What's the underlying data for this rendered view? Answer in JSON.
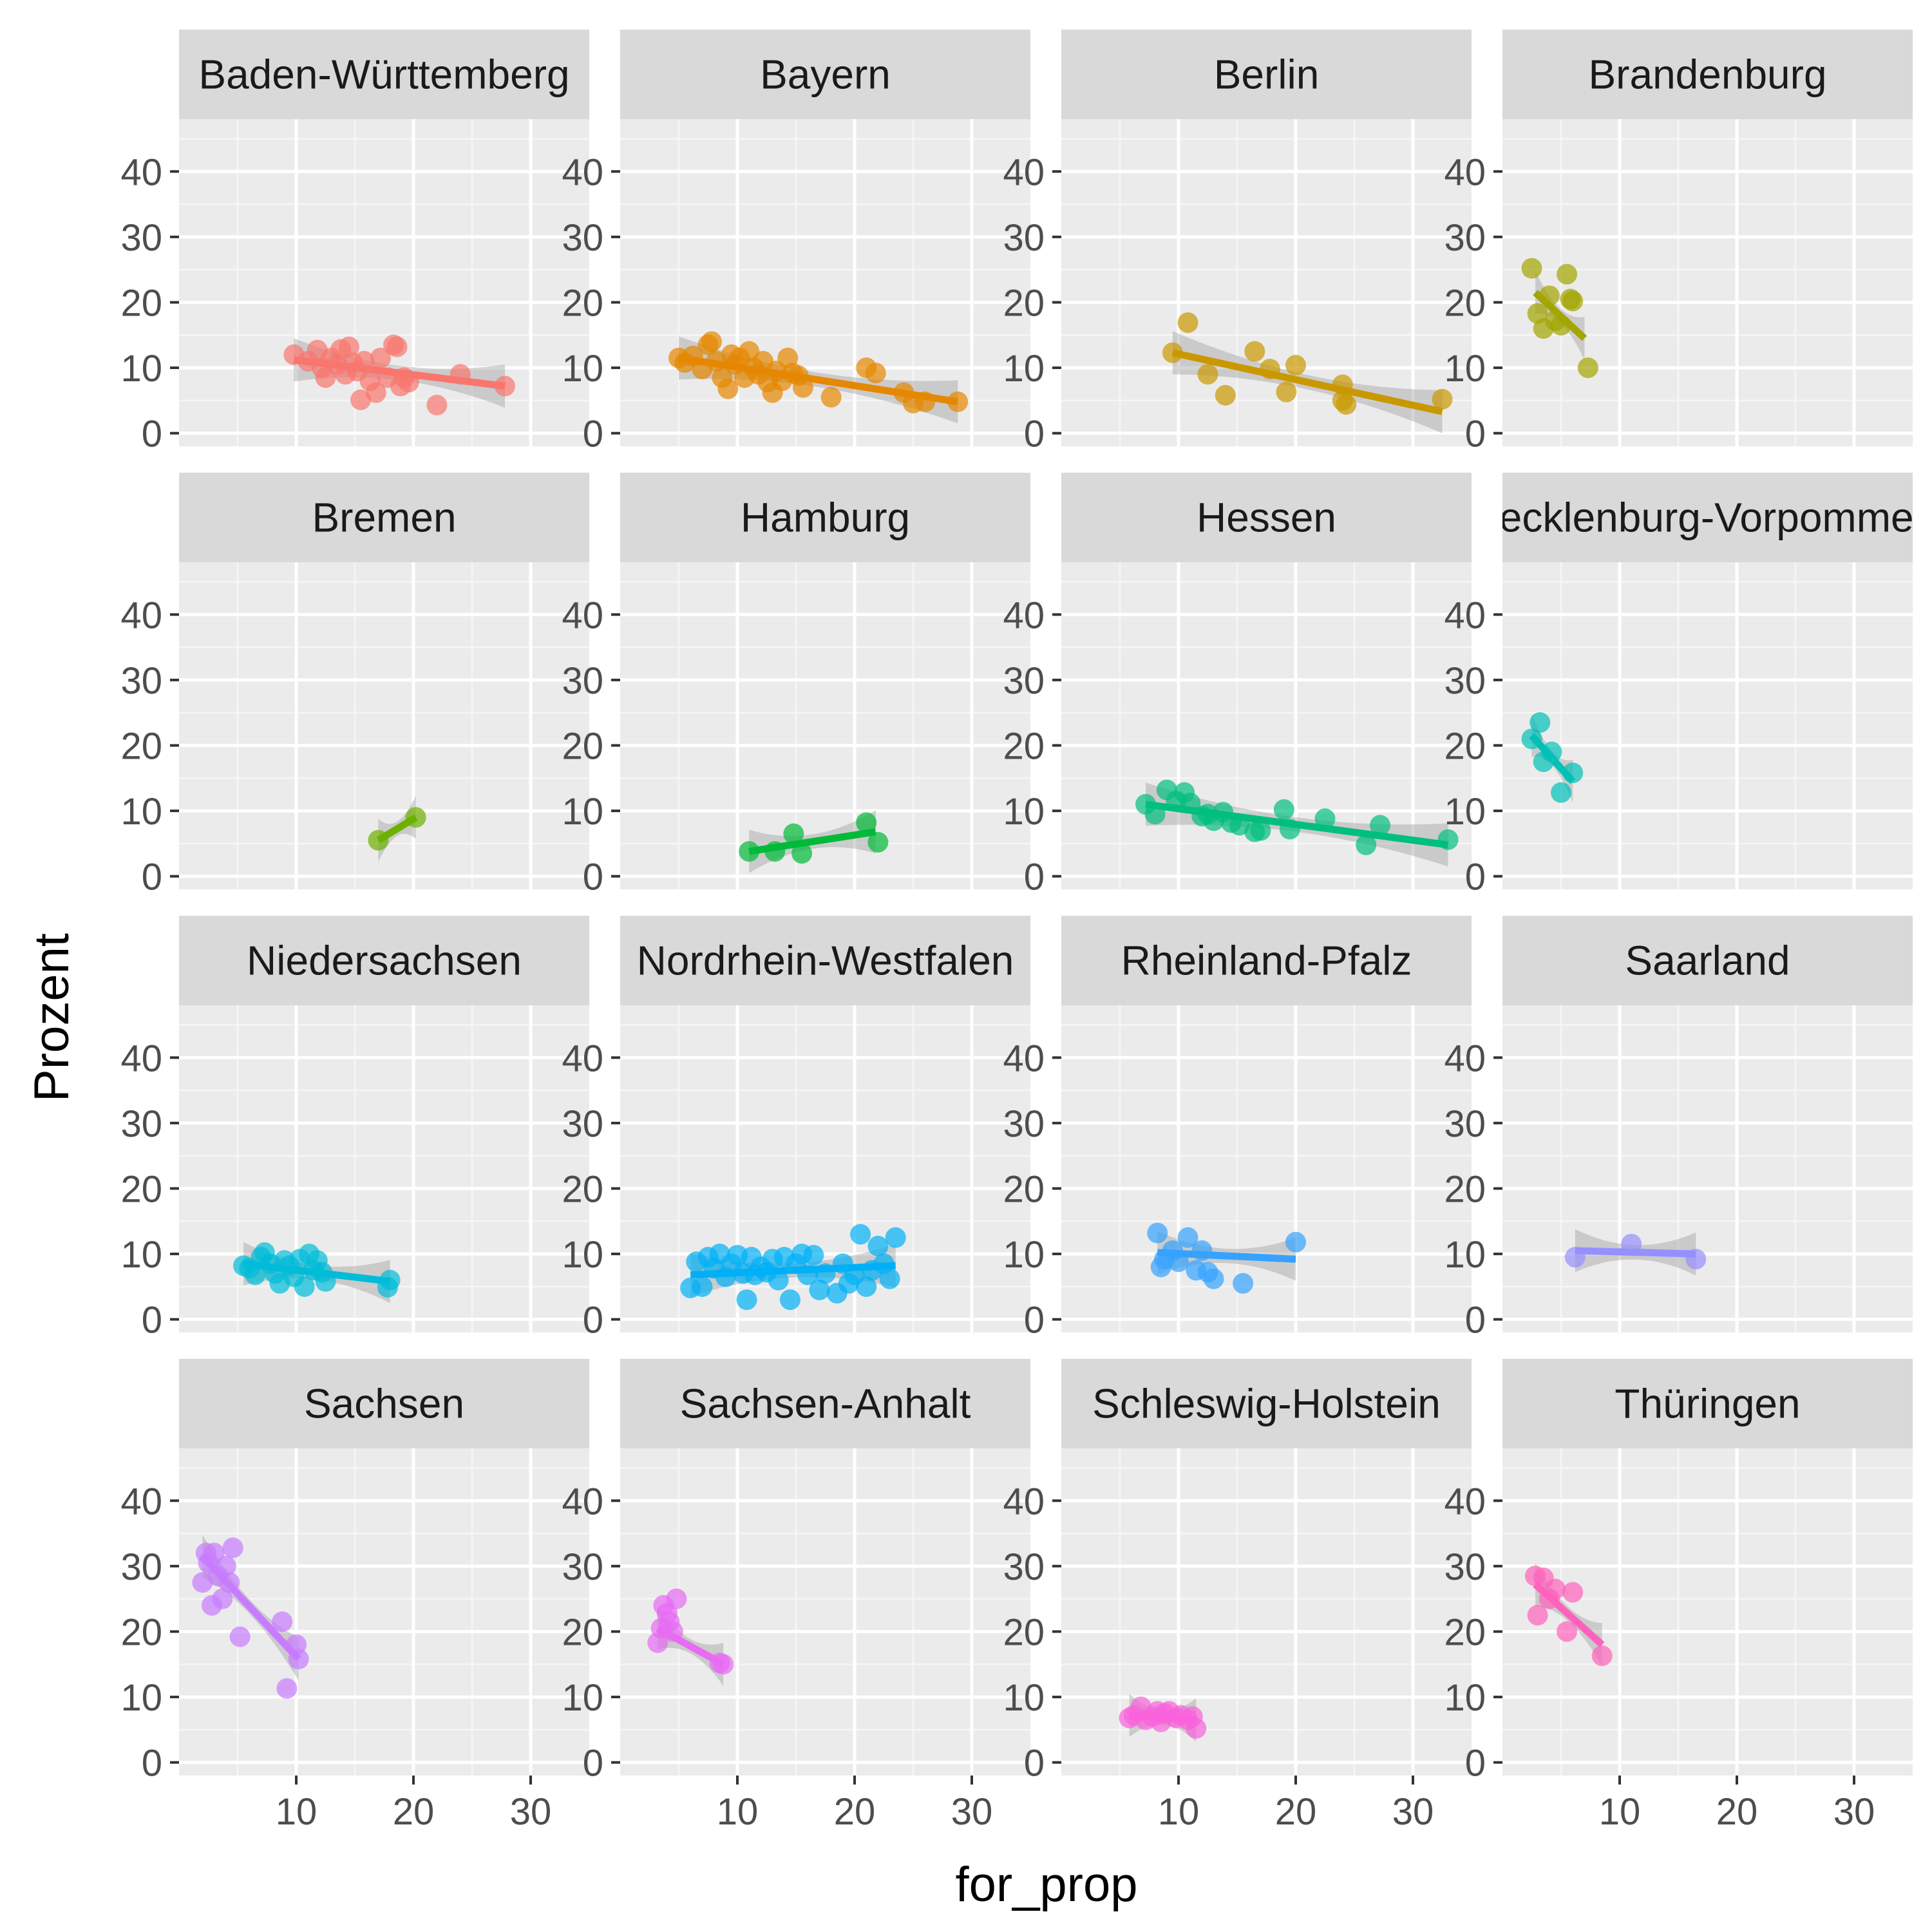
{
  "chart_data": {
    "type": "scatter",
    "facet_layout": "wrap 4x4",
    "xlabel": "for_prop",
    "ylabel": "Prozent",
    "xlim": [
      0,
      35
    ],
    "ylim": [
      -2,
      48
    ],
    "xticks": [
      10,
      20,
      30
    ],
    "yticks": [
      0,
      10,
      20,
      30,
      40
    ],
    "grid": true,
    "legend": "none",
    "smoothing": "linear fit with grey confidence band",
    "panels": [
      {
        "name": "Baden-Württemberg",
        "color": "#F8766D",
        "points": [
          [
            9.8,
            12
          ],
          [
            11,
            11
          ],
          [
            11.8,
            12.7
          ],
          [
            12.2,
            10
          ],
          [
            12.5,
            8.5
          ],
          [
            13,
            11.5
          ],
          [
            13.5,
            10.5
          ],
          [
            13.8,
            12.8
          ],
          [
            14.2,
            9
          ],
          [
            14.5,
            13.2
          ],
          [
            14.8,
            10.8
          ],
          [
            15.2,
            9.5
          ],
          [
            15.5,
            5.1
          ],
          [
            15.8,
            11
          ],
          [
            16.3,
            8
          ],
          [
            16.8,
            6.2
          ],
          [
            17.2,
            11.5
          ],
          [
            17.8,
            8.5
          ],
          [
            18.3,
            13.5
          ],
          [
            18.6,
            13.2
          ],
          [
            18.9,
            7.2
          ],
          [
            19.2,
            8.5
          ],
          [
            19.6,
            7.8
          ],
          [
            22,
            4.3
          ],
          [
            24,
            9
          ],
          [
            27.8,
            7.2
          ]
        ],
        "fit": {
          "x": [
            9.8,
            27.8
          ],
          "y": [
            11.2,
            7.2
          ]
        }
      },
      {
        "name": "Bayern",
        "color": "#E58700",
        "points": [
          [
            5,
            11.5
          ],
          [
            5.5,
            10.8
          ],
          [
            6.2,
            11.8
          ],
          [
            7,
            9.8
          ],
          [
            7.5,
            13.5
          ],
          [
            7.8,
            14
          ],
          [
            8.2,
            11
          ],
          [
            8.7,
            8.5
          ],
          [
            9.2,
            6.8
          ],
          [
            9.5,
            12
          ],
          [
            9.8,
            10.5
          ],
          [
            10.2,
            11.5
          ],
          [
            10.6,
            8.5
          ],
          [
            11,
            12.5
          ],
          [
            11.4,
            10
          ],
          [
            11.8,
            9
          ],
          [
            12.2,
            11
          ],
          [
            12.6,
            7.8
          ],
          [
            13,
            6.2
          ],
          [
            13.3,
            9.5
          ],
          [
            13.8,
            8
          ],
          [
            14.3,
            11.5
          ],
          [
            14.7,
            9.2
          ],
          [
            15.2,
            8.8
          ],
          [
            15.6,
            7
          ],
          [
            18,
            5.5
          ],
          [
            21,
            10
          ],
          [
            21.8,
            9.2
          ],
          [
            24.2,
            6.2
          ],
          [
            25,
            4.6
          ],
          [
            26,
            4.8
          ],
          [
            28.8,
            4.8
          ]
        ],
        "fit": {
          "x": [
            5,
            28.8
          ],
          "y": [
            11.5,
            4.8
          ]
        }
      },
      {
        "name": "Berlin",
        "color": "#C99800",
        "points": [
          [
            9.5,
            12.3
          ],
          [
            10.8,
            16.9
          ],
          [
            12.5,
            9
          ],
          [
            14,
            5.8
          ],
          [
            16.5,
            12.5
          ],
          [
            17.8,
            9.8
          ],
          [
            19.2,
            6.3
          ],
          [
            20,
            10.4
          ],
          [
            24,
            7.4
          ],
          [
            24,
            5
          ],
          [
            24.3,
            4.4
          ],
          [
            32.5,
            5.2
          ]
        ],
        "fit": {
          "x": [
            9.5,
            32.5
          ],
          "y": [
            12.3,
            3.3
          ]
        }
      },
      {
        "name": "Brandenburg",
        "color": "#A3A500",
        "points": [
          [
            2.5,
            25.2
          ],
          [
            3,
            18.3
          ],
          [
            3.5,
            16
          ],
          [
            4,
            21
          ],
          [
            4.5,
            17.2
          ],
          [
            5,
            16.5
          ],
          [
            5.5,
            24.3
          ],
          [
            5.8,
            20.5
          ],
          [
            6,
            20.2
          ],
          [
            7.3,
            10
          ]
        ],
        "fit": {
          "x": [
            2.8,
            7
          ],
          "y": [
            21.5,
            14.5
          ]
        }
      },
      {
        "name": "Bremen",
        "color": "#6BB100",
        "points": [
          [
            17,
            5.5
          ],
          [
            20.2,
            9
          ]
        ],
        "fit": {
          "x": [
            17,
            20.2
          ],
          "y": [
            5.5,
            9
          ]
        }
      },
      {
        "name": "Hamburg",
        "color": "#00BA38",
        "points": [
          [
            11,
            3.8
          ],
          [
            13.2,
            3.8
          ],
          [
            14.8,
            6.5
          ],
          [
            15.5,
            3.5
          ],
          [
            21,
            8.2
          ],
          [
            22,
            5.2
          ]
        ],
        "fit": {
          "x": [
            11,
            21.8
          ],
          "y": [
            3.8,
            6.8
          ]
        }
      },
      {
        "name": "Hessen",
        "color": "#00BF7D",
        "points": [
          [
            7.2,
            11
          ],
          [
            8,
            9.5
          ],
          [
            9,
            13.2
          ],
          [
            9.8,
            11.5
          ],
          [
            10.5,
            12.8
          ],
          [
            11,
            11.2
          ],
          [
            12,
            9.2
          ],
          [
            12.5,
            9.5
          ],
          [
            13,
            8.5
          ],
          [
            13.8,
            9.8
          ],
          [
            14.5,
            8.2
          ],
          [
            15.2,
            7.8
          ],
          [
            16.5,
            6.8
          ],
          [
            17,
            7
          ],
          [
            19,
            10.2
          ],
          [
            19.5,
            7.2
          ],
          [
            22.5,
            8.8
          ],
          [
            26,
            4.8
          ],
          [
            27.2,
            7.8
          ],
          [
            33,
            5.6
          ]
        ],
        "fit": {
          "x": [
            7.2,
            33
          ],
          "y": [
            11,
            4.8
          ]
        }
      },
      {
        "name": "Mecklenburg-Vorpommern",
        "color": "#00C0B8",
        "points": [
          [
            2.5,
            21
          ],
          [
            3.2,
            23.5
          ],
          [
            3.5,
            17.5
          ],
          [
            4.2,
            19
          ],
          [
            5,
            12.8
          ],
          [
            6,
            15.8
          ]
        ],
        "fit": {
          "x": [
            2.5,
            6
          ],
          "y": [
            21.5,
            14.5
          ]
        }
      },
      {
        "name": "Niedersachsen",
        "color": "#00BCD8",
        "points": [
          [
            5.5,
            8.2
          ],
          [
            6,
            7.8
          ],
          [
            6.5,
            6.8
          ],
          [
            7,
            9.5
          ],
          [
            7.3,
            10.2
          ],
          [
            7.8,
            8.5
          ],
          [
            8.2,
            7
          ],
          [
            8.6,
            5.5
          ],
          [
            9,
            9
          ],
          [
            9.4,
            8.2
          ],
          [
            9.8,
            6.5
          ],
          [
            10.3,
            9.2
          ],
          [
            10.7,
            5
          ],
          [
            11.1,
            10
          ],
          [
            11.5,
            7.5
          ],
          [
            11.8,
            9
          ],
          [
            12.2,
            7.2
          ],
          [
            12.5,
            5.8
          ],
          [
            17.8,
            4.9
          ],
          [
            18,
            6
          ]
        ],
        "fit": {
          "x": [
            5.5,
            18
          ],
          "y": [
            8.5,
            5.8
          ]
        }
      },
      {
        "name": "Nordrhein-Westfalen",
        "color": "#00B0F6",
        "points": [
          [
            6,
            4.8
          ],
          [
            6.5,
            8.8
          ],
          [
            7,
            5
          ],
          [
            7.5,
            9.5
          ],
          [
            8,
            7.8
          ],
          [
            8.5,
            10
          ],
          [
            9,
            6.5
          ],
          [
            9.5,
            8.5
          ],
          [
            10,
            9.8
          ],
          [
            10.5,
            7
          ],
          [
            10.8,
            3
          ],
          [
            11.2,
            9.5
          ],
          [
            11.5,
            6.8
          ],
          [
            12,
            8
          ],
          [
            12.5,
            7.2
          ],
          [
            13,
            9.2
          ],
          [
            13.5,
            6
          ],
          [
            14,
            9.5
          ],
          [
            14.5,
            3
          ],
          [
            15,
            8.5
          ],
          [
            15.5,
            10
          ],
          [
            16,
            6.8
          ],
          [
            16.5,
            9.8
          ],
          [
            17,
            4.5
          ],
          [
            17.5,
            7
          ],
          [
            18.5,
            4
          ],
          [
            19,
            8.5
          ],
          [
            19.5,
            5.5
          ],
          [
            20,
            6.8
          ],
          [
            20.5,
            13
          ],
          [
            21,
            5
          ],
          [
            21.5,
            7.5
          ],
          [
            22,
            11.2
          ],
          [
            22.5,
            8.5
          ],
          [
            23,
            6.2
          ],
          [
            23.5,
            12.5
          ]
        ],
        "fit": {
          "x": [
            6,
            23.5
          ],
          "y": [
            6.8,
            8.2
          ]
        }
      },
      {
        "name": "Rheinland-Pfalz",
        "color": "#35A2FF",
        "points": [
          [
            8.2,
            13.2
          ],
          [
            8.5,
            8
          ],
          [
            8.8,
            9.2
          ],
          [
            9.5,
            10.5
          ],
          [
            10,
            8.8
          ],
          [
            10.8,
            12.5
          ],
          [
            11.5,
            7.5
          ],
          [
            12,
            10.5
          ],
          [
            12.5,
            7.2
          ],
          [
            13,
            6.2
          ],
          [
            15.5,
            5.5
          ],
          [
            20,
            11.8
          ]
        ],
        "fit": {
          "x": [
            8.2,
            20
          ],
          "y": [
            10.2,
            9.2
          ]
        }
      },
      {
        "name": "Saarland",
        "color": "#9590FF",
        "points": [
          [
            6.2,
            9.5
          ],
          [
            11,
            11.5
          ],
          [
            16.5,
            9.2
          ]
        ],
        "fit": {
          "x": [
            6.2,
            16.5
          ],
          "y": [
            10.5,
            10
          ]
        }
      },
      {
        "name": "Sachsen",
        "color": "#C77CFF",
        "points": [
          [
            2,
            27.5
          ],
          [
            2.3,
            32
          ],
          [
            2.5,
            30.5
          ],
          [
            2.8,
            24
          ],
          [
            3,
            32
          ],
          [
            3.3,
            28.5
          ],
          [
            3.7,
            25
          ],
          [
            4,
            30
          ],
          [
            4.3,
            27.5
          ],
          [
            4.6,
            32.8
          ],
          [
            5.2,
            19.2
          ],
          [
            8.8,
            21.5
          ],
          [
            9.2,
            11.3
          ],
          [
            10,
            18
          ],
          [
            10.2,
            15.8
          ]
        ],
        "fit": {
          "x": [
            2,
            10.2
          ],
          "y": [
            31.5,
            15.8
          ]
        }
      },
      {
        "name": "Sachsen-Anhalt",
        "color": "#E76BF3",
        "points": [
          [
            3.2,
            18.3
          ],
          [
            3.5,
            20.5
          ],
          [
            3.7,
            24
          ],
          [
            4,
            22.8
          ],
          [
            4.2,
            21.5
          ],
          [
            4.5,
            20
          ],
          [
            4.8,
            25
          ],
          [
            8.5,
            15.2
          ],
          [
            8.8,
            15
          ]
        ],
        "fit": {
          "x": [
            3.2,
            8.8
          ],
          "y": [
            20.5,
            15
          ]
        }
      },
      {
        "name": "Schleswig-Holstein",
        "color": "#FA62DB",
        "points": [
          [
            5.8,
            6.8
          ],
          [
            6.2,
            7.2
          ],
          [
            6.8,
            8.5
          ],
          [
            7.2,
            6.5
          ],
          [
            7.8,
            7
          ],
          [
            8.2,
            7.8
          ],
          [
            8.5,
            6.2
          ],
          [
            8.8,
            7.5
          ],
          [
            9.2,
            7.8
          ],
          [
            9.8,
            6.8
          ],
          [
            10.2,
            7.2
          ],
          [
            10.8,
            6.5
          ],
          [
            11.2,
            7
          ],
          [
            11.5,
            5.2
          ]
        ],
        "fit": {
          "x": [
            5.8,
            11.5
          ],
          "y": [
            7.2,
            6.5
          ]
        }
      },
      {
        "name": "Thüringen",
        "color": "#FF62BC",
        "points": [
          [
            2.8,
            28.5
          ],
          [
            3,
            22.5
          ],
          [
            3.5,
            28.2
          ],
          [
            4,
            25
          ],
          [
            4.5,
            26.5
          ],
          [
            5.5,
            20
          ],
          [
            6,
            26
          ],
          [
            8.5,
            16.3
          ]
        ],
        "fit": {
          "x": [
            2.8,
            8.5
          ],
          "y": [
            27.2,
            18
          ]
        }
      }
    ]
  }
}
